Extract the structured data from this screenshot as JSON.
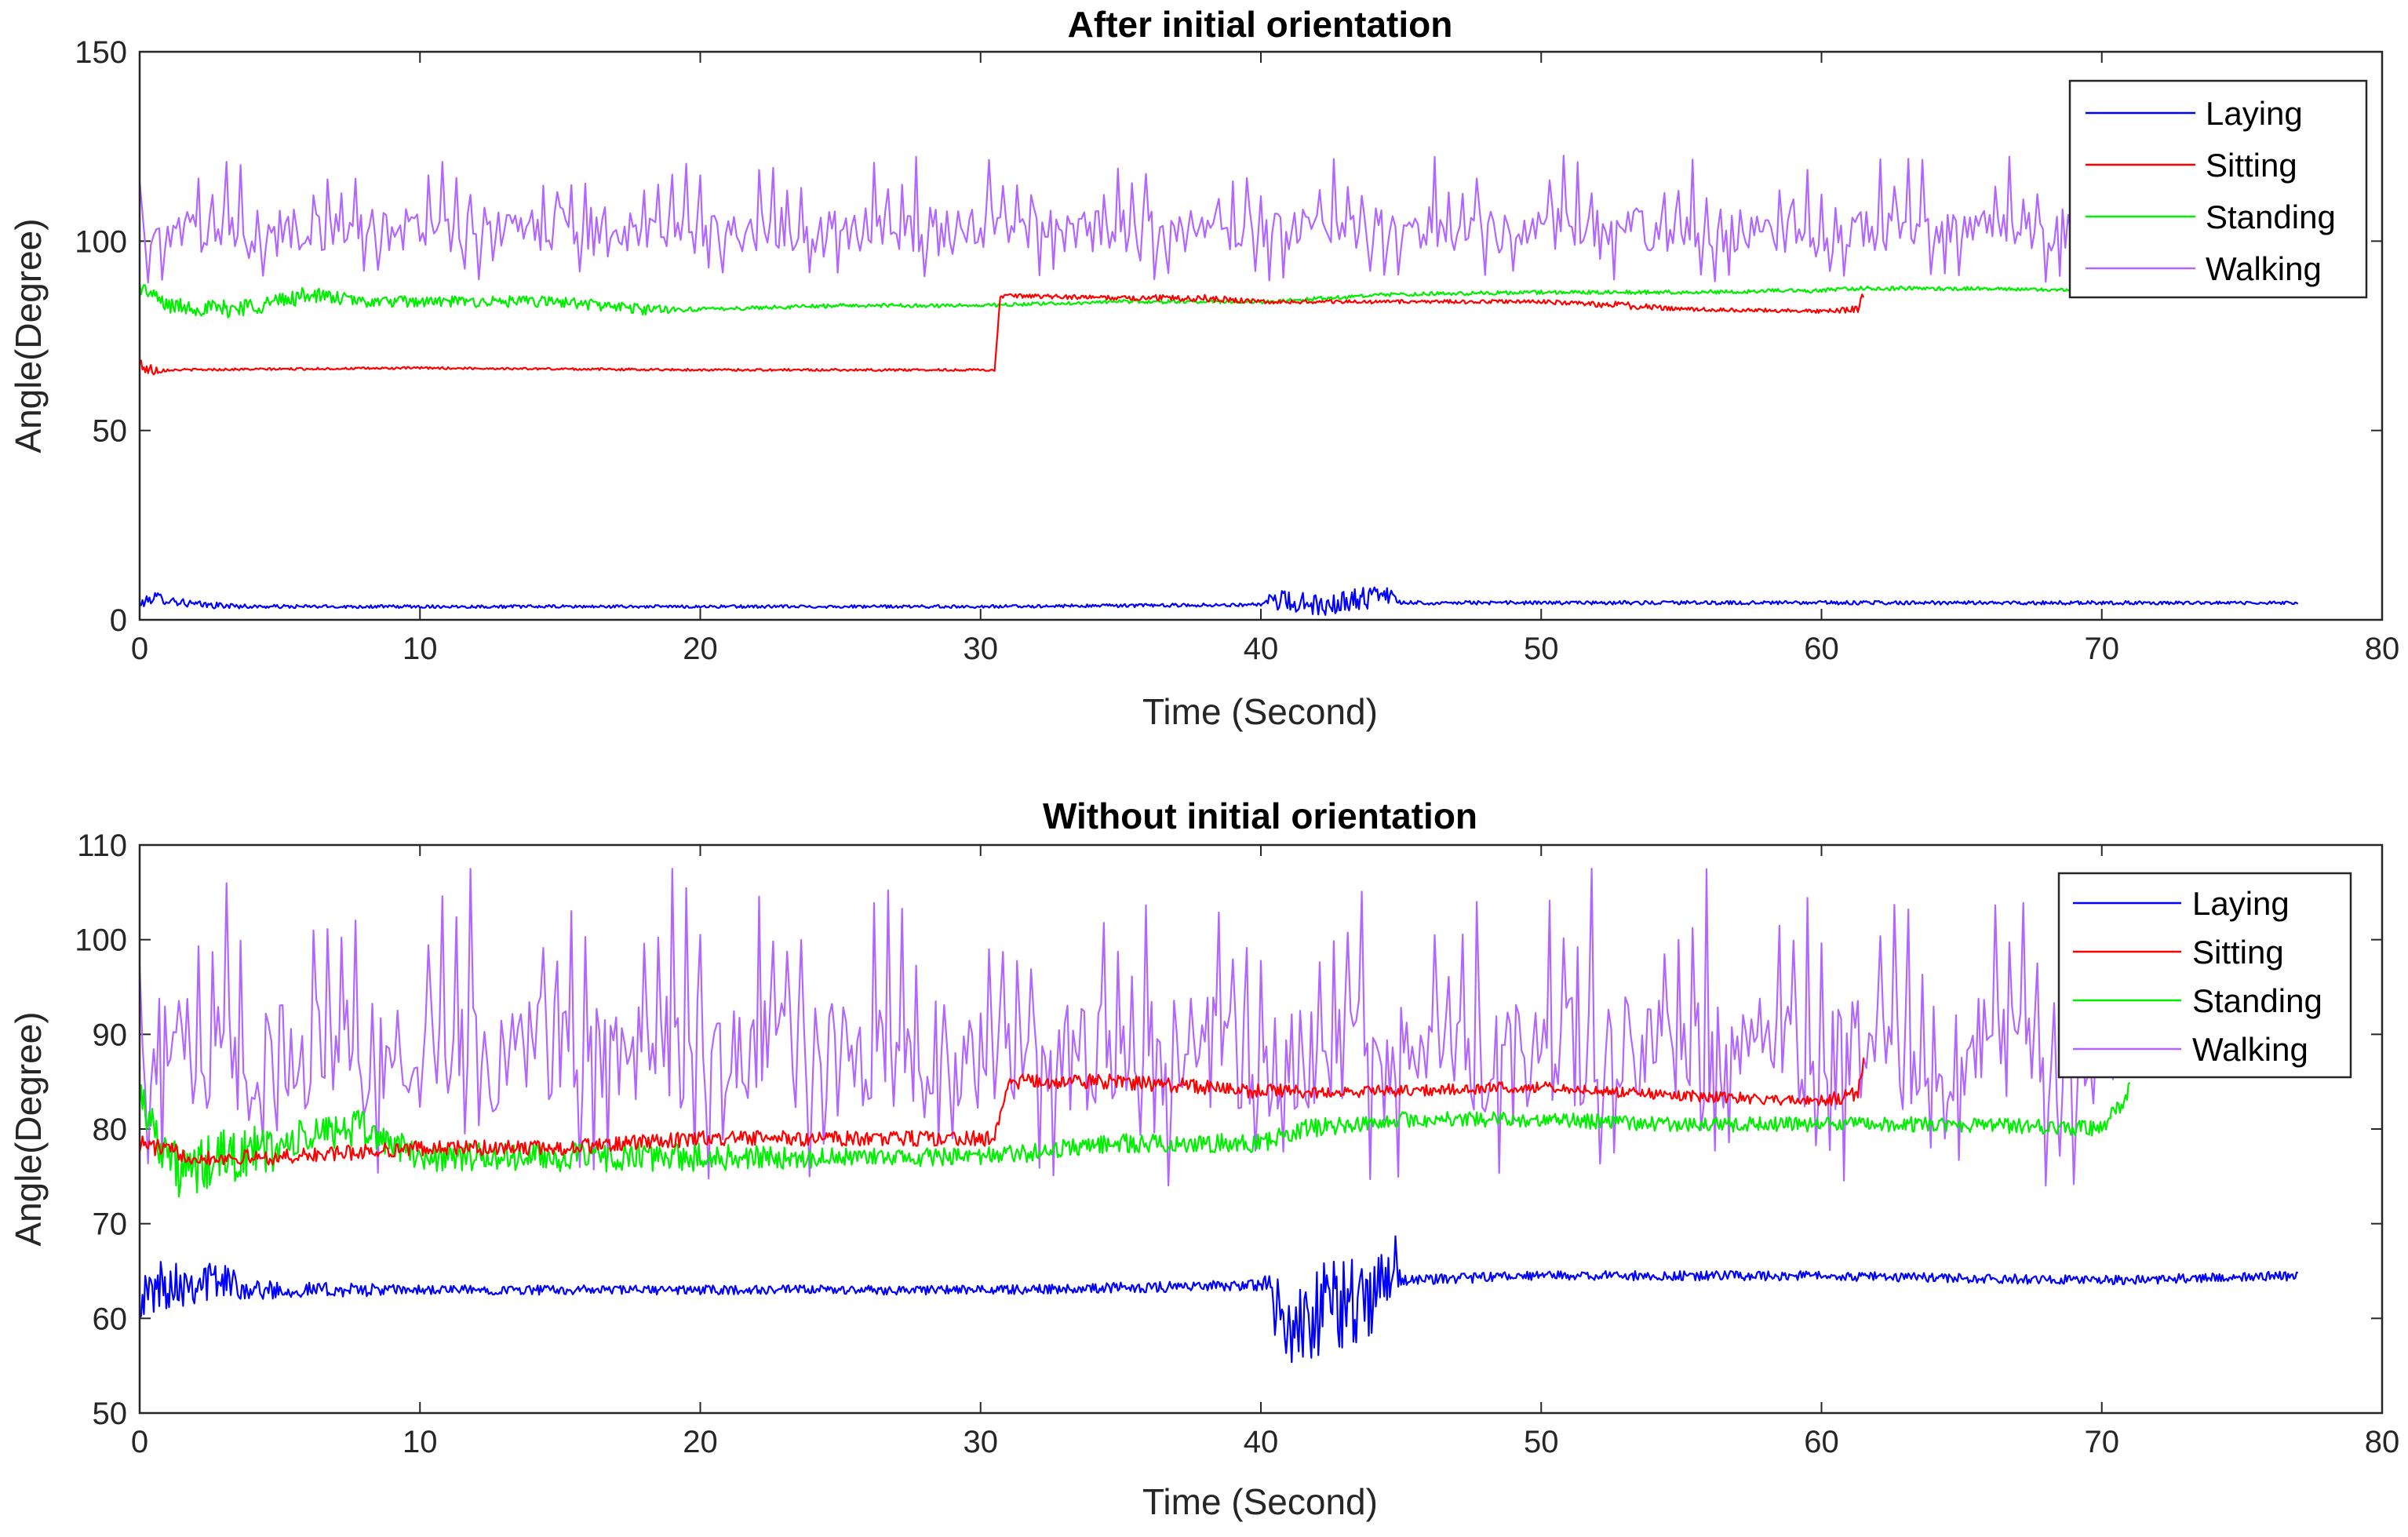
{
  "colors": {
    "Laying": "#0000ff",
    "Sitting": "#ff0000",
    "Standing": "#00ee00",
    "Walking": "#b266ff"
  },
  "chart_data": [
    {
      "type": "line",
      "title": "After initial orientation",
      "xlabel": "Time (Second)",
      "ylabel": "Angle(Degree)",
      "xlim": [
        0,
        80
      ],
      "ylim": [
        0,
        150
      ],
      "xticks": [
        "0",
        "10",
        "20",
        "30",
        "40",
        "50",
        "60",
        "70",
        "80"
      ],
      "yticks": [
        "0",
        "50",
        "100",
        "150"
      ],
      "legend_position": "top-right",
      "series": [
        {
          "name": "Laying",
          "x": [
            0,
            0.5,
            2,
            4,
            10,
            20,
            30,
            40,
            40.5,
            42,
            44,
            44.8,
            45,
            50,
            60,
            70,
            77
          ],
          "y": [
            4,
            6,
            4,
            3.5,
            3.5,
            3.5,
            3.5,
            4,
            5,
            4,
            6,
            6,
            4.5,
            4.5,
            4.5,
            4.5,
            4.5
          ],
          "noise": [
            1,
            1.5,
            1,
            0.5,
            0.4,
            0.4,
            0.4,
            0.5,
            3,
            3,
            3,
            2,
            0.5,
            0.5,
            0.5,
            0.5,
            0.4
          ]
        },
        {
          "name": "Sitting",
          "x": [
            0,
            0.3,
            1,
            10,
            20,
            30,
            30.5,
            30.7,
            31,
            35,
            38,
            40,
            45,
            50,
            53,
            55,
            60,
            61.3,
            61.5
          ],
          "y": [
            68,
            66,
            66,
            66.5,
            66,
            66,
            66,
            85,
            85.5,
            85,
            85,
            84,
            84,
            84,
            83,
            82,
            81.5,
            82,
            86
          ],
          "noise": [
            2,
            2,
            0.3,
            0.3,
            0.3,
            0.3,
            0.3,
            0.5,
            0.6,
            0.6,
            1,
            0.5,
            0.5,
            0.5,
            1,
            0.5,
            0.5,
            1,
            1
          ]
        },
        {
          "name": "Standing",
          "x": [
            0,
            1,
            3,
            5,
            6,
            8,
            10,
            15,
            18,
            20,
            25,
            30,
            35,
            40,
            45,
            50,
            55,
            60,
            61.5,
            65,
            70
          ],
          "y": [
            88,
            83,
            82,
            84,
            86,
            84,
            84,
            84,
            82,
            82,
            83,
            83,
            84,
            84,
            86,
            86.5,
            86.5,
            87,
            87.5,
            87.5,
            87
          ],
          "noise": [
            2,
            2,
            2.5,
            2.5,
            2,
            1.5,
            1.5,
            1.5,
            1.5,
            0.5,
            0.5,
            0.5,
            0.5,
            0.5,
            0.5,
            0.5,
            0.5,
            0.6,
            0.6,
            0.5,
            0.5
          ]
        },
        {
          "name": "Walking",
          "x": [
            0,
            70.5
          ],
          "y": [
            103,
            103
          ],
          "noise": [
            10,
            10
          ]
        }
      ]
    },
    {
      "type": "line",
      "title": "Without initial orientation",
      "xlabel": "Time (Second)",
      "ylabel": "Angle(Degree)",
      "xlim": [
        0,
        80
      ],
      "ylim": [
        50,
        110
      ],
      "xticks": [
        "0",
        "10",
        "20",
        "30",
        "40",
        "50",
        "60",
        "70",
        "80"
      ],
      "yticks": [
        "50",
        "60",
        "70",
        "80",
        "90",
        "100",
        "110"
      ],
      "legend_position": "top-right",
      "series": [
        {
          "name": "Laying",
          "x": [
            0,
            1,
            3,
            4,
            10,
            20,
            30,
            40,
            40.5,
            41.5,
            42.5,
            43.5,
            44.8,
            45,
            50,
            60,
            70,
            77
          ],
          "y": [
            62,
            64,
            64,
            63,
            63,
            63,
            63,
            63.5,
            62,
            58,
            62,
            61,
            66,
            64,
            64.5,
            64.5,
            64,
            64.5
          ],
          "noise": [
            2,
            3,
            2,
            1,
            0.5,
            0.5,
            0.5,
            0.6,
            4,
            5,
            5,
            5,
            3,
            0.6,
            0.5,
            0.5,
            0.5,
            0.5
          ]
        },
        {
          "name": "Sitting",
          "x": [
            0,
            2,
            5,
            10,
            15,
            20,
            25,
            30,
            30.5,
            31,
            35,
            40,
            45,
            50,
            55,
            60,
            61.3,
            61.5
          ],
          "y": [
            78.5,
            77,
            77,
            78,
            78,
            79,
            79,
            79,
            79,
            85,
            85,
            84,
            84,
            84.5,
            83.5,
            83,
            83.5,
            87
          ],
          "noise": [
            1,
            0.8,
            0.8,
            0.8,
            0.8,
            0.8,
            0.8,
            0.8,
            0.8,
            0.8,
            0.8,
            0.8,
            0.6,
            0.6,
            0.6,
            0.6,
            1,
            1
          ]
        },
        {
          "name": "Standing",
          "x": [
            0,
            0.5,
            1.5,
            3,
            5,
            7,
            8,
            10,
            15,
            20,
            25,
            30,
            35,
            40,
            41.5,
            45,
            50,
            55,
            60,
            65,
            70,
            71
          ],
          "y": [
            84,
            80,
            75,
            77,
            78,
            80,
            80,
            77,
            77,
            77,
            77,
            77,
            78.5,
            78.5,
            80,
            81,
            81,
            80.5,
            80.5,
            80.5,
            80,
            84
          ],
          "noise": [
            2,
            2.5,
            3,
            3,
            2.5,
            2,
            2,
            1.5,
            1.5,
            1.5,
            1,
            1,
            1,
            1,
            1,
            0.8,
            0.8,
            0.8,
            0.8,
            0.8,
            0.8,
            1
          ]
        },
        {
          "name": "Walking",
          "x": [
            0,
            70.5
          ],
          "y": [
            88,
            88
          ],
          "noise": [
            10,
            10
          ]
        }
      ]
    }
  ]
}
